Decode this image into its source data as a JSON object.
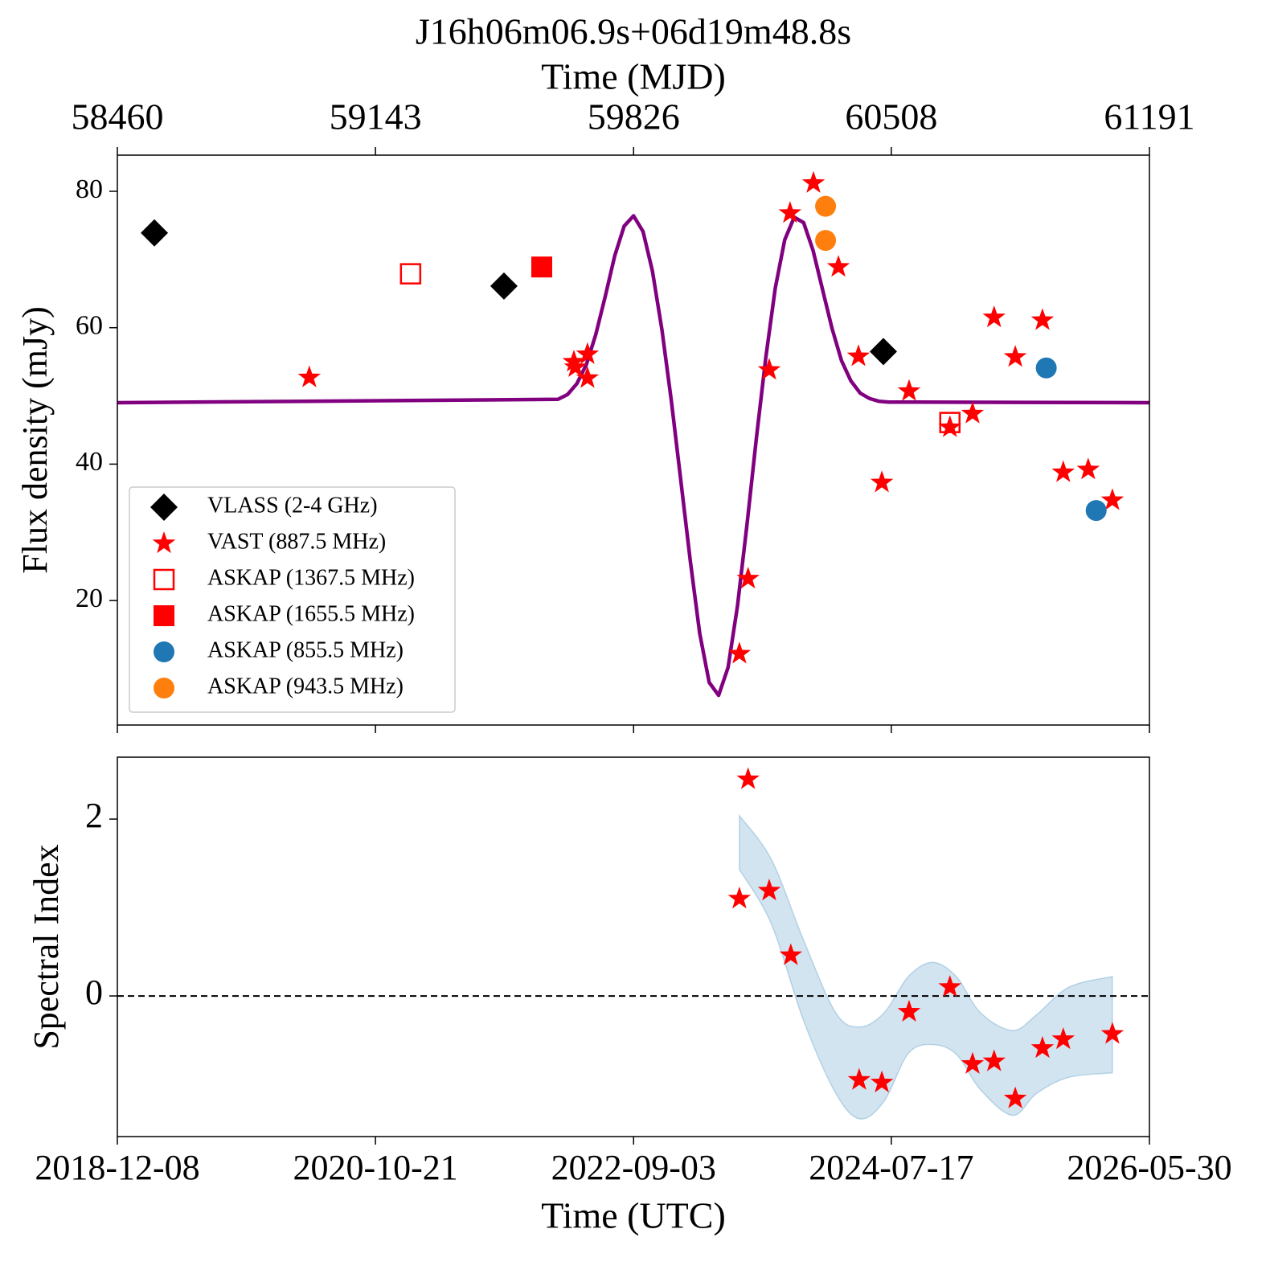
{
  "chart_data": [
    {
      "type": "scatter",
      "title": "J16h06m06.9s+06d19m48.8s",
      "xlabel": "Time (MJD)",
      "ylabel": "Flux density (mJy)",
      "xlim": [
        58460,
        61191
      ],
      "xticks": [
        58460,
        59143,
        59826,
        60508,
        61191
      ],
      "ylim": [
        1.75,
        85.3
      ],
      "yticks": [
        20,
        40,
        60,
        80
      ],
      "legend": "lower left",
      "series": [
        {
          "name": "VLASS (2-4 GHz)",
          "color": "#000000",
          "marker": "diamond",
          "x": [
            58558,
            59483,
            60487
          ],
          "values": [
            73.9,
            66.1,
            56.5
          ]
        },
        {
          "name": "VAST (887.5 MHz)",
          "color": "#ff0000",
          "marker": "star",
          "x": [
            58968,
            59668,
            59672,
            59704,
            59704,
            60106,
            60129,
            60185,
            60240,
            60302,
            60368,
            60421,
            60483,
            60555,
            60663,
            60723,
            60780,
            60836,
            60908,
            60963,
            61029,
            61093
          ],
          "values": [
            52.7,
            55.0,
            54.2,
            56.1,
            52.6,
            12.2,
            23.2,
            53.8,
            76.8,
            81.2,
            68.9,
            55.8,
            37.3,
            50.7,
            45.4,
            47.4,
            61.5,
            55.7,
            61.1,
            38.8,
            39.2,
            34.7
          ]
        },
        {
          "name": "ASKAP (1367.5 MHz)",
          "color": "#ff0000",
          "marker": "open-square",
          "x": [
            59236,
            60663
          ],
          "values": [
            67.9,
            46.1
          ]
        },
        {
          "name": "ASKAP (1655.5 MHz)",
          "color": "#ff0000",
          "marker": "square",
          "x": [
            59583
          ],
          "values": [
            68.9
          ]
        },
        {
          "name": "ASKAP (855.5 MHz)",
          "color": "#1f77b4",
          "marker": "circle",
          "x": [
            60918,
            61050
          ],
          "values": [
            54.1,
            33.2
          ]
        },
        {
          "name": "ASKAP (943.5 MHz)",
          "color": "#ff7f0e",
          "marker": "circle",
          "x": [
            60334,
            60334
          ],
          "values": [
            77.8,
            72.8
          ]
        }
      ],
      "curve": {
        "color": "#800080",
        "x": [
          58460,
          59626,
          59651,
          59676,
          59701,
          59726,
          59751,
          59776,
          59801,
          59826,
          59851,
          59876,
          59901,
          59926,
          59951,
          59976,
          60001,
          60026,
          60051,
          60076,
          60101,
          60126,
          60151,
          60176,
          60201,
          60226,
          60251,
          60276,
          60301,
          60326,
          60351,
          60376,
          60401,
          60426,
          60451,
          60476,
          60501,
          61191
        ],
        "values": [
          49,
          49.5,
          50.2,
          51.8,
          54.6,
          59.0,
          64.6,
          70.5,
          74.9,
          76.4,
          74.1,
          68.3,
          59.7,
          49.2,
          37.6,
          25.8,
          15.2,
          8.0,
          6.1,
          10.2,
          19.2,
          31.1,
          43.8,
          55.7,
          65.8,
          72.9,
          76.2,
          75.4,
          71.3,
          65.6,
          59.9,
          55.2,
          52.2,
          50.4,
          49.6,
          49.2,
          49.1,
          49
        ]
      }
    },
    {
      "type": "scatter",
      "xlabel": "Time (UTC)",
      "ylabel": "Spectral Index",
      "xlim": [
        58460,
        61191
      ],
      "xticks": [
        {
          "value": 58460,
          "label": "2018-12-08"
        },
        {
          "value": 59143,
          "label": "2020-10-21"
        },
        {
          "value": 59826,
          "label": "2022-09-03"
        },
        {
          "value": 60508,
          "label": "2024-07-17"
        },
        {
          "value": 61191,
          "label": "2026-05-30"
        }
      ],
      "ylim": [
        -1.59,
        2.7
      ],
      "yticks": [
        0,
        2
      ],
      "hline": 0,
      "series": [
        {
          "color": "#ff0000",
          "marker": "star",
          "x": [
            60106,
            60129,
            60185,
            60242,
            60423,
            60483,
            60555,
            60663,
            60723,
            60780,
            60836,
            60908,
            60963,
            61093
          ],
          "values": [
            1.1,
            2.45,
            1.19,
            0.46,
            -0.95,
            -0.98,
            -0.18,
            0.1,
            -0.77,
            -0.74,
            -1.16,
            -0.59,
            -0.49,
            -0.43
          ]
        }
      ],
      "band": {
        "color": "#1f77b4",
        "x": [
          60106,
          60191,
          60276,
          60361,
          60425,
          60489,
          60553,
          60617,
          60680,
          60744,
          60829,
          60893,
          60978,
          61093
        ],
        "upper": [
          2.04,
          1.54,
          0.63,
          -0.19,
          -0.35,
          -0.19,
          0.22,
          0.38,
          0.22,
          -0.19,
          -0.39,
          -0.21,
          0.1,
          0.22
        ],
        "lower": [
          1.43,
          0.81,
          -0.28,
          -1.1,
          -1.39,
          -1.19,
          -0.65,
          -0.55,
          -0.66,
          -1.06,
          -1.35,
          -1.1,
          -0.92,
          -0.87
        ]
      }
    }
  ]
}
